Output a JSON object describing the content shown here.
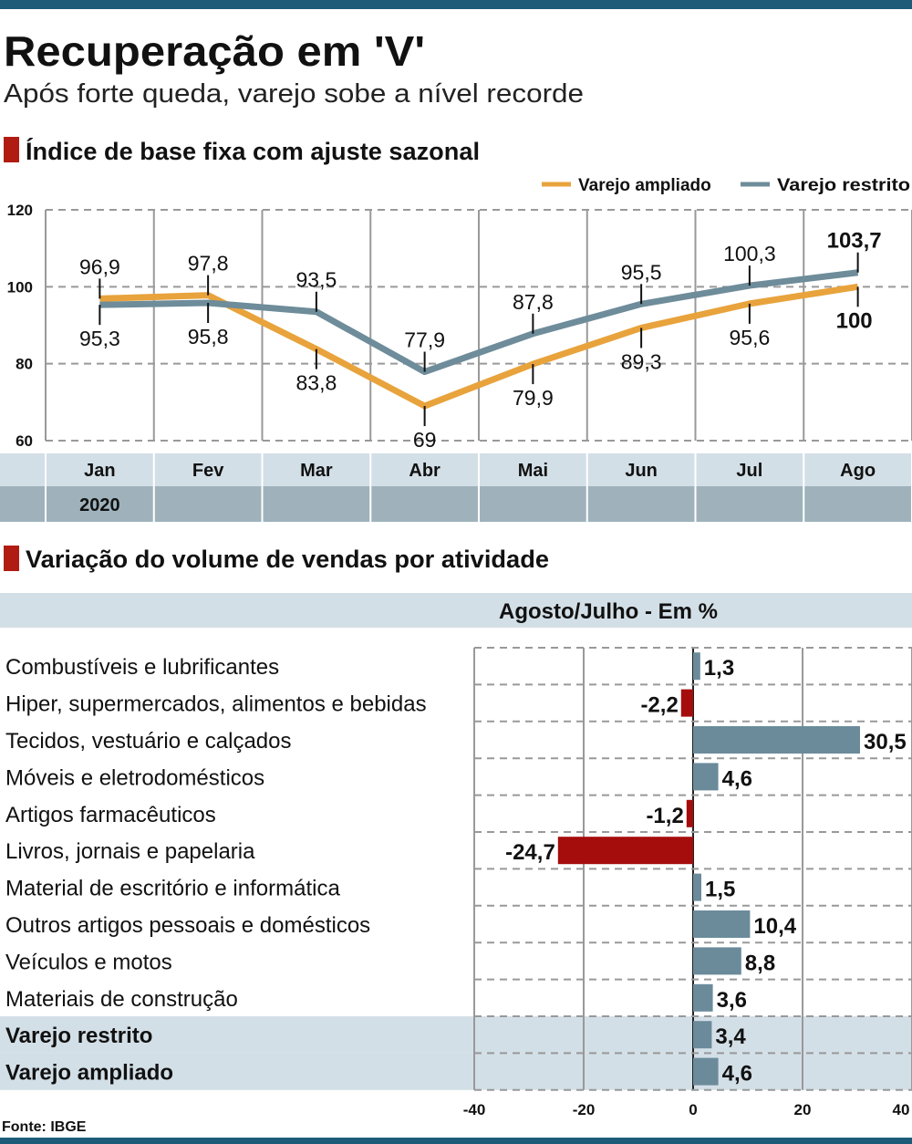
{
  "title": "Recuperação em 'V'",
  "subtitle": "Após forte queda, varejo sobe a nível recorde",
  "source": "Fonte: IBGE",
  "colors": {
    "frame": "#1d5b79",
    "ampliado": "#e8a33c",
    "restrito": "#6e8c9a",
    "negative": "#a50d0d",
    "positive": "#6b8b9b",
    "band_light": "#d3dfe7",
    "band_dark": "#9fb2bc",
    "section_marker": "#b01c12"
  },
  "chart_data": [
    {
      "type": "line",
      "title": "Índice de base fixa com ajuste sazonal",
      "categories": [
        "Jan",
        "Fev",
        "Mar",
        "Abr",
        "Mai",
        "Jun",
        "Jul",
        "Ago"
      ],
      "year_label": "2020",
      "ylim": [
        60,
        120
      ],
      "yticks": [
        "60",
        "80",
        "100",
        "120"
      ],
      "grid": true,
      "legend_position": "top-right",
      "series": [
        {
          "name": "Varejo ampliado",
          "values": [
            96.9,
            97.8,
            83.8,
            69,
            79.9,
            89.3,
            95.6,
            100
          ],
          "labels": [
            "96,9",
            "97,8",
            "83,8",
            "69",
            "79,9",
            "89,3",
            "95,6",
            "100"
          ]
        },
        {
          "name": "Varejo restrito",
          "values": [
            95.3,
            95.8,
            93.5,
            77.9,
            87.8,
            95.5,
            100.3,
            103.7
          ],
          "labels": [
            "95,3",
            "95,8",
            "93,5",
            "77,9",
            "87,8",
            "95,5",
            "100,3",
            "103,7"
          ]
        }
      ]
    },
    {
      "type": "bar",
      "orientation": "horizontal",
      "title": "Variação do volume de vendas por atividade",
      "subtitle": "Agosto/Julho - Em %",
      "xlim": [
        -40,
        40
      ],
      "xticks": [
        "-40",
        "-20",
        "0",
        "20",
        "40"
      ],
      "grid": true,
      "categories": [
        "Combustíveis e lubrificantes",
        "Hiper, supermercados, alimentos e bebidas",
        "Tecidos, vestuário e calçados",
        "Móveis e eletrodomésticos",
        "Artigos farmacêuticos",
        "Livros, jornais e papelaria",
        "Material de escritório e informática",
        "Outros artigos pessoais e domésticos",
        "Veículos e motos",
        "Materiais de construção",
        "Varejo restrito",
        "Varejo ampliado"
      ],
      "values": [
        1.3,
        -2.2,
        30.5,
        4.6,
        -1.2,
        -24.7,
        1.5,
        10.4,
        8.8,
        3.6,
        3.4,
        4.6
      ],
      "labels": [
        "1,3",
        "-2,2",
        "30,5",
        "4,6",
        "-1,2",
        "-24,7",
        "1,5",
        "10,4",
        "8,8",
        "3,6",
        "3,4",
        "4,6"
      ],
      "highlighted": [
        "Varejo restrito",
        "Varejo ampliado"
      ]
    }
  ]
}
